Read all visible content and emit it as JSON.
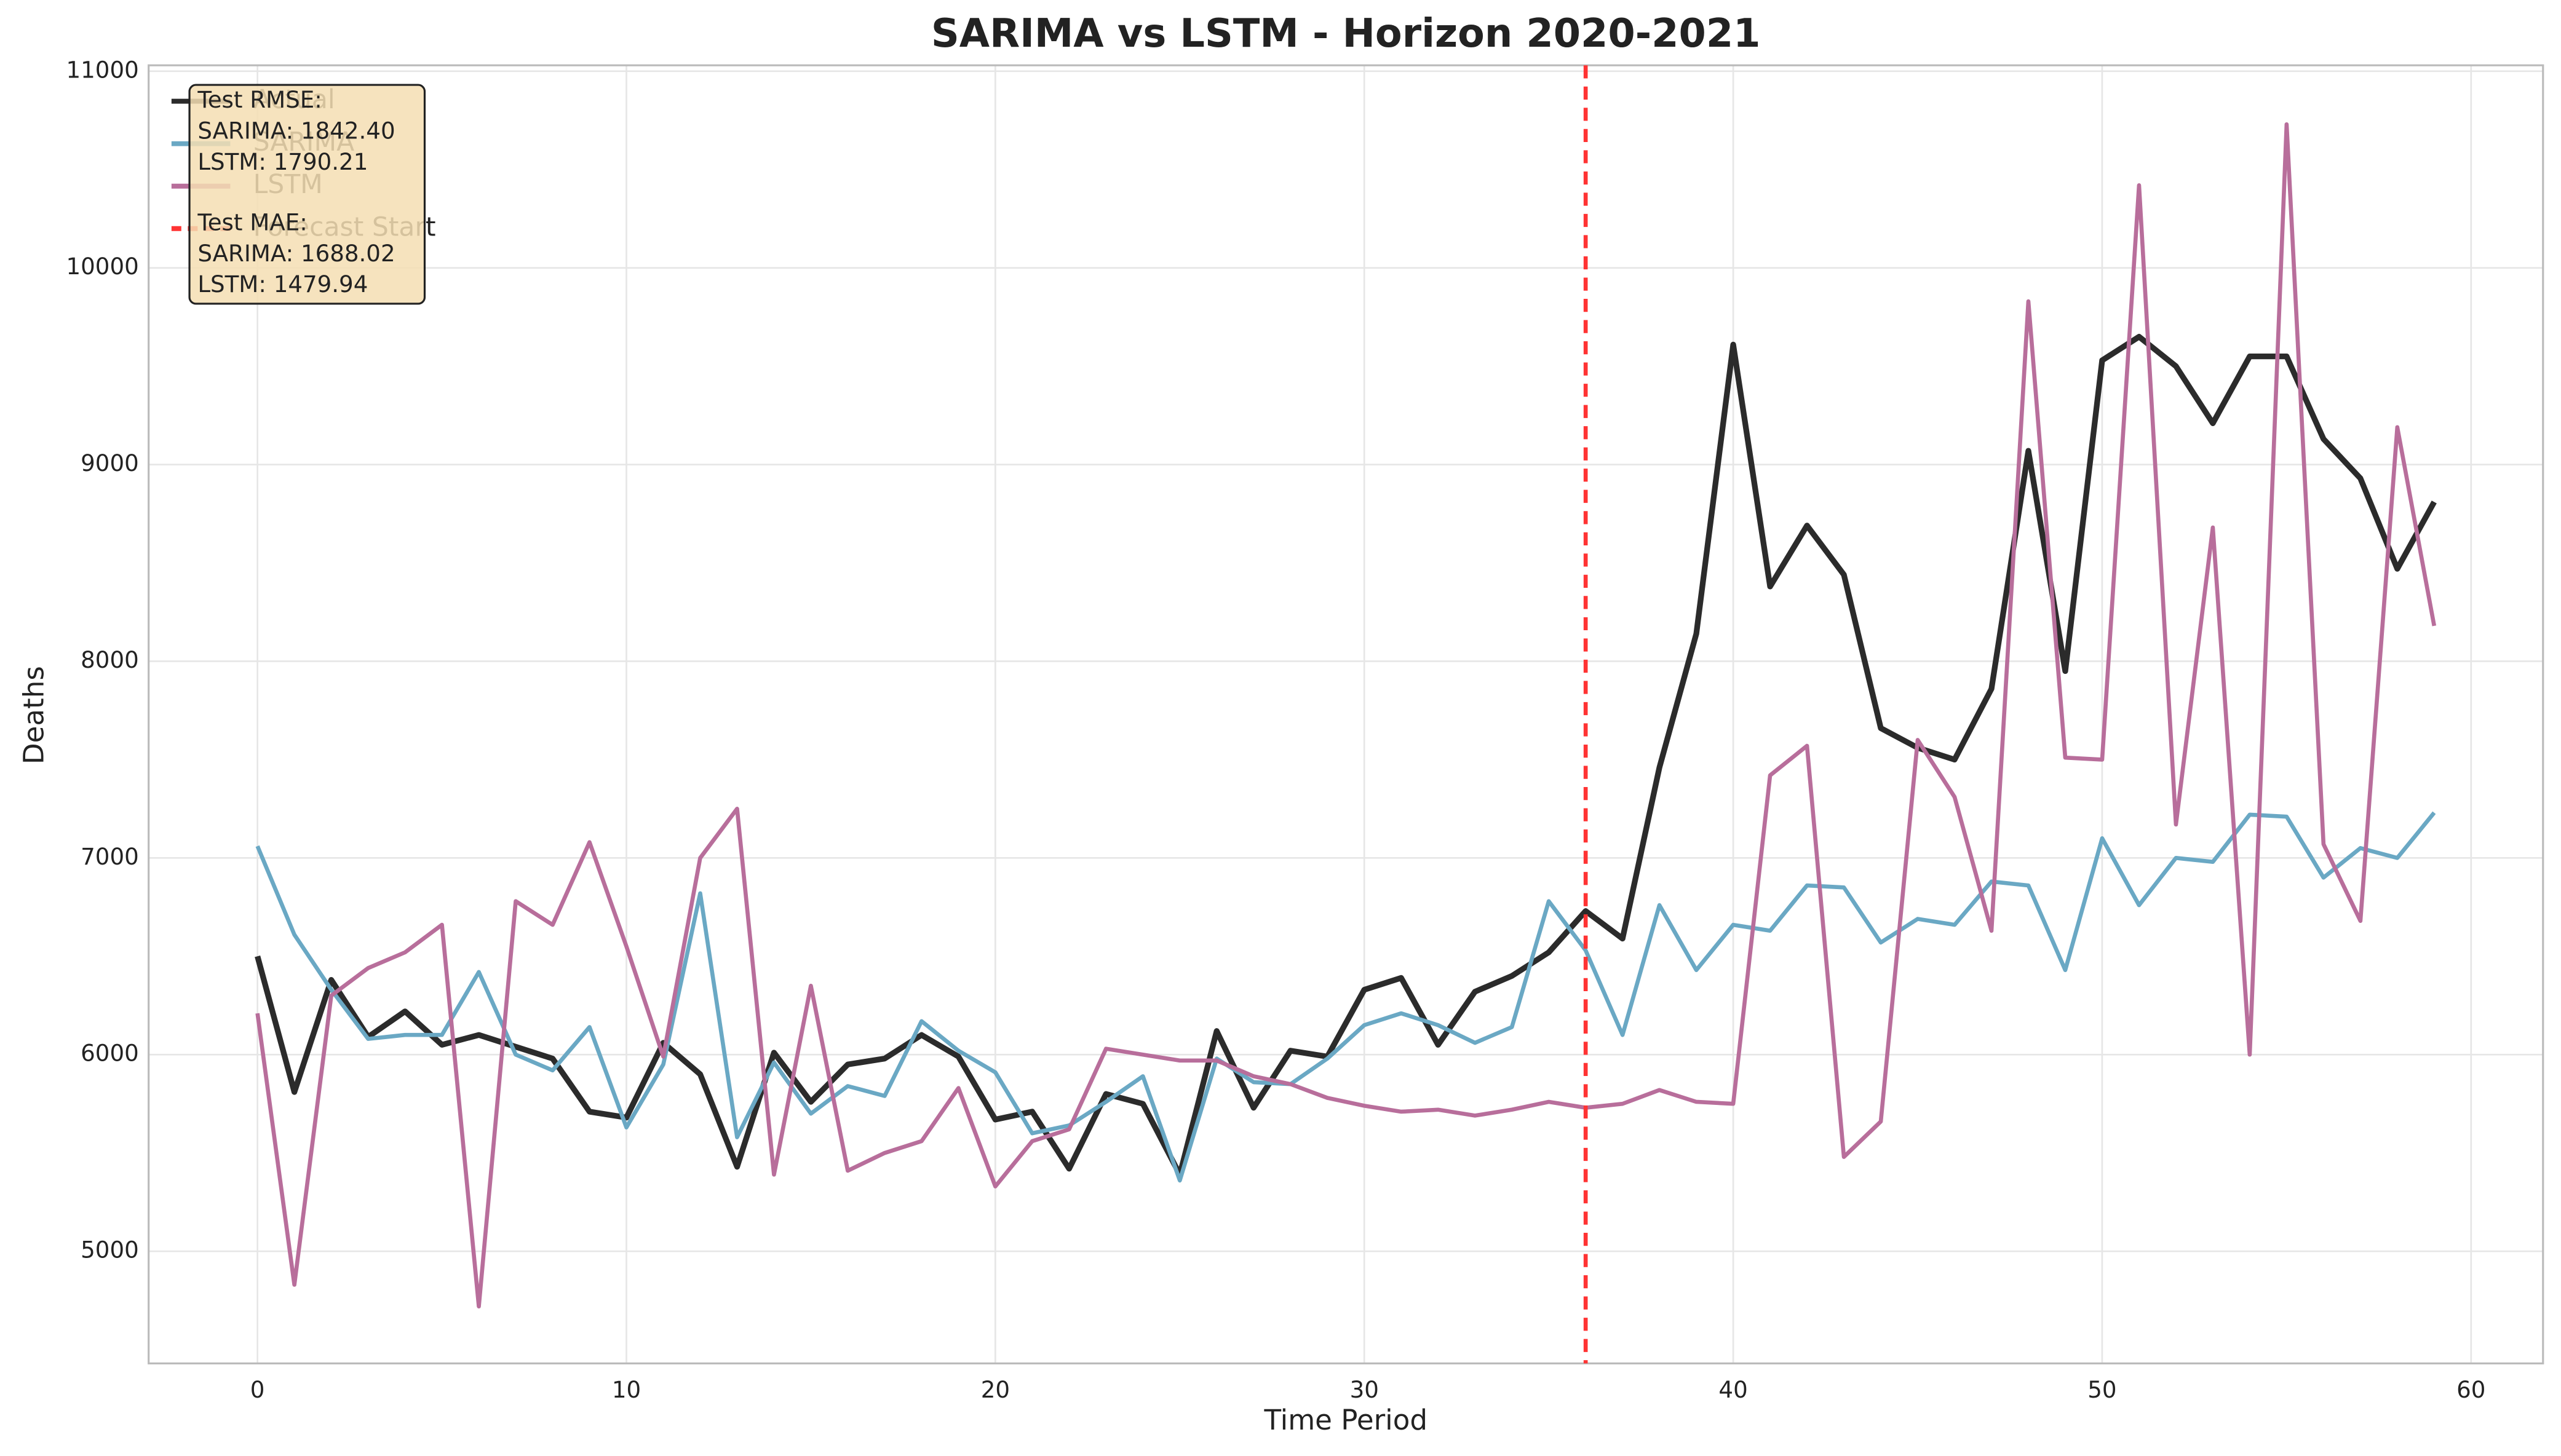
{
  "chart_data": {
    "type": "line",
    "title": "SARIMA vs LSTM - Horizon 2020-2021",
    "xlabel": "Time Period",
    "ylabel": "Deaths",
    "x": [
      0,
      1,
      2,
      3,
      4,
      5,
      6,
      7,
      8,
      9,
      10,
      11,
      12,
      13,
      14,
      15,
      16,
      17,
      18,
      19,
      20,
      21,
      22,
      23,
      24,
      25,
      26,
      27,
      28,
      29,
      30,
      31,
      32,
      33,
      34,
      35,
      36,
      37,
      38,
      39,
      40,
      41,
      42,
      43,
      44,
      45,
      46,
      47,
      48,
      49,
      50,
      51,
      52,
      53,
      54,
      55,
      56,
      57,
      58,
      59
    ],
    "series": [
      {
        "name": "Actual",
        "color": "#2b2b2b",
        "values": [
          6500,
          5810,
          6380,
          6090,
          6220,
          6050,
          6100,
          6040,
          5980,
          5710,
          5680,
          6060,
          5900,
          5430,
          6010,
          5760,
          5950,
          5980,
          6100,
          5990,
          5670,
          5710,
          5420,
          5800,
          5750,
          5390,
          6120,
          5730,
          6020,
          5990,
          6330,
          6390,
          6050,
          6320,
          6400,
          6520,
          6730,
          6590,
          7460,
          8140,
          9610,
          8380,
          8690,
          8440,
          7660,
          7560,
          7500,
          7860,
          9070,
          7950,
          9530,
          9650,
          9500,
          9210,
          9550,
          9550,
          9130,
          8930,
          8470,
          8810
        ]
      },
      {
        "name": "SARIMA",
        "color": "#6aa8c4",
        "values": [
          7060,
          6610,
          6330,
          6080,
          6100,
          6100,
          6420,
          6000,
          5920,
          6140,
          5630,
          5950,
          6820,
          5580,
          5960,
          5700,
          5840,
          5790,
          6170,
          6020,
          5910,
          5600,
          5640,
          5760,
          5890,
          5360,
          5980,
          5860,
          5850,
          5980,
          6150,
          6210,
          6150,
          6060,
          6140,
          6780,
          6530,
          6100,
          6760,
          6430,
          6660,
          6630,
          6860,
          6850,
          6570,
          6690,
          6660,
          6880,
          6860,
          6430,
          7100,
          6760,
          7000,
          6980,
          7220,
          7210,
          6900,
          7050,
          7000,
          7230
        ]
      },
      {
        "name": "LSTM",
        "color": "#b86e9b",
        "values": [
          6210,
          4830,
          6300,
          6440,
          6520,
          6660,
          4720,
          6780,
          6660,
          7080,
          6550,
          5990,
          7000,
          7250,
          5390,
          6350,
          5410,
          5500,
          5560,
          5830,
          5330,
          5560,
          5620,
          6030,
          6000,
          5970,
          5970,
          5890,
          5850,
          5780,
          5740,
          5710,
          5720,
          5690,
          5720,
          5760,
          5730,
          5750,
          5820,
          5760,
          5750,
          7420,
          7570,
          5480,
          5660,
          7600,
          7310,
          6630,
          9830,
          7510,
          7500,
          10420,
          7170,
          8680,
          6000,
          10730,
          7070,
          6680,
          9190,
          8180
        ]
      }
    ],
    "forecast_start": {
      "label": "Forecast Start",
      "x": 36,
      "color": "#ff3333"
    },
    "stats_box": [
      "Test RMSE:",
      "SARIMA: 1842.40",
      "LSTM: 1790.21",
      "Test MAE:",
      "SARIMA: 1688.02",
      "LSTM: 1479.94"
    ],
    "xlim": [
      -2.95,
      61.95
    ],
    "ylim": [
      4430,
      11030
    ],
    "xticks": [
      0,
      10,
      20,
      30,
      40,
      50,
      60
    ],
    "yticks": [
      5000,
      6000,
      7000,
      8000,
      9000,
      10000,
      11000
    ],
    "grid": true,
    "legend": "upper left"
  }
}
